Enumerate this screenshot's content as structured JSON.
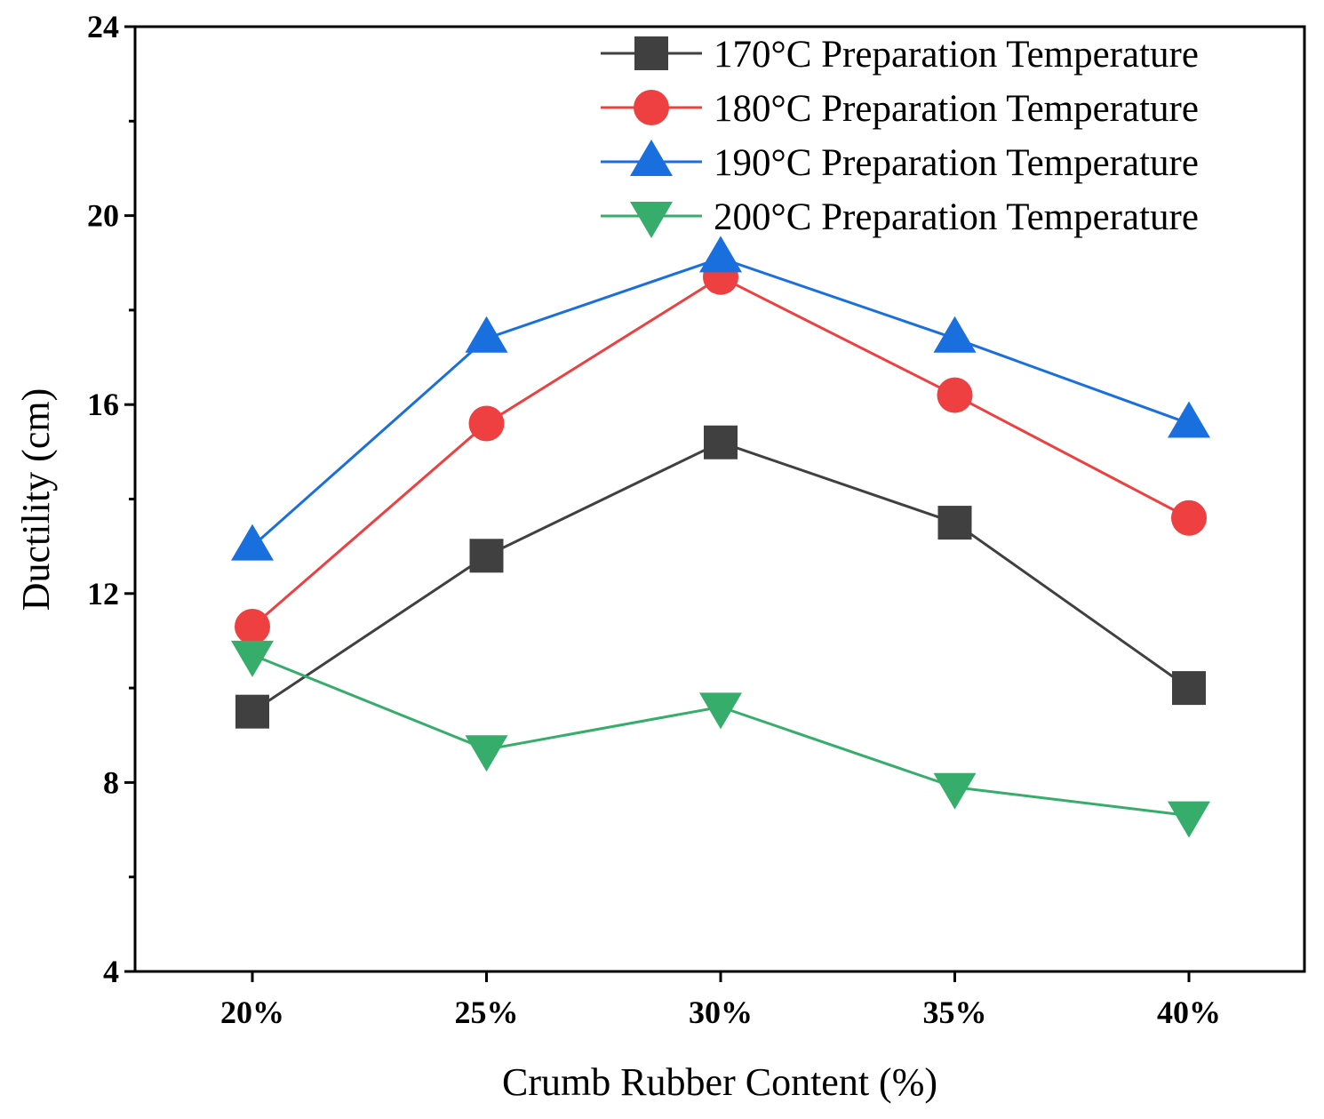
{
  "chart_data": {
    "type": "line",
    "title": "",
    "xlabel": "Crumb Rubber Content (%)",
    "ylabel": "Ductility (cm)",
    "categories": [
      "20%",
      "25%",
      "30%",
      "35%",
      "40%"
    ],
    "ylim": [
      4,
      24
    ],
    "yticks": [
      "4",
      "8",
      "12",
      "16",
      "20",
      "24"
    ],
    "ytick_values": [
      4,
      8,
      12,
      16,
      20,
      24
    ],
    "grid": false,
    "legend_position": "top-right",
    "series": [
      {
        "name": "170°C Preparation Temperature",
        "color": "#404040",
        "marker": "square",
        "values": [
          9.5,
          12.8,
          15.2,
          13.5,
          10.0
        ]
      },
      {
        "name": "180°C Preparation Temperature",
        "color": "#ee4040",
        "marker": "circle",
        "values": [
          11.3,
          15.6,
          18.7,
          16.2,
          13.6
        ]
      },
      {
        "name": "190°C Preparation Temperature",
        "color": "#1a6fdf",
        "marker": "triangle-up",
        "values": [
          13.0,
          17.4,
          19.1,
          17.4,
          15.6
        ]
      },
      {
        "name": "200°C Preparation Temperature",
        "color": "#37ad6b",
        "marker": "triangle-down",
        "values": [
          10.7,
          8.7,
          9.6,
          7.9,
          7.3
        ]
      }
    ]
  }
}
